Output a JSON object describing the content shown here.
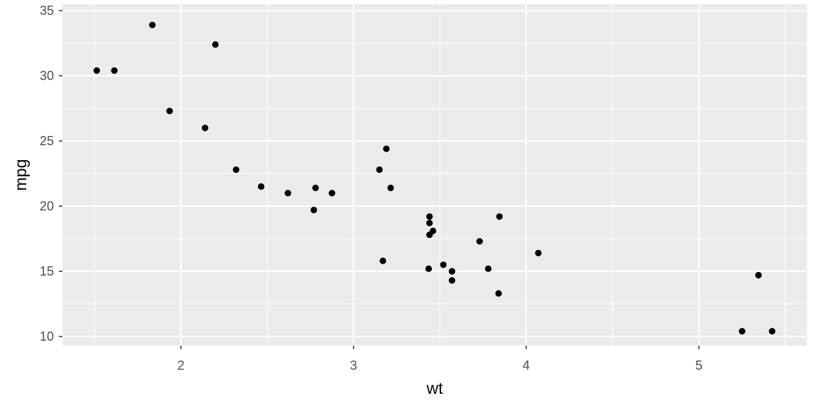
{
  "chart_data": {
    "type": "scatter",
    "xlabel": "wt",
    "ylabel": "mpg",
    "xlim": [
      1.3,
      5.6
    ],
    "ylim": [
      9.2,
      35.2
    ],
    "x_ticks": [
      2,
      3,
      4,
      5
    ],
    "x_tick_labels": [
      "2",
      "3",
      "4",
      "5"
    ],
    "y_ticks": [
      10,
      15,
      20,
      25,
      30,
      35
    ],
    "y_tick_labels": [
      "10",
      "15",
      "20",
      "25",
      "30",
      "35"
    ],
    "grid": true,
    "legend": "none",
    "colors": {
      "panel": "#ebebeb",
      "grid": "#ffffff",
      "point": "#000000"
    },
    "points": [
      {
        "x": 1.513,
        "y": 30.4
      },
      {
        "x": 1.615,
        "y": 30.4
      },
      {
        "x": 1.835,
        "y": 33.9
      },
      {
        "x": 1.935,
        "y": 27.3
      },
      {
        "x": 2.14,
        "y": 26.0
      },
      {
        "x": 2.2,
        "y": 32.4
      },
      {
        "x": 2.32,
        "y": 22.8
      },
      {
        "x": 2.465,
        "y": 21.5
      },
      {
        "x": 2.62,
        "y": 21.0
      },
      {
        "x": 2.77,
        "y": 19.7
      },
      {
        "x": 2.78,
        "y": 21.4
      },
      {
        "x": 2.875,
        "y": 21.0
      },
      {
        "x": 3.15,
        "y": 22.8
      },
      {
        "x": 3.17,
        "y": 15.8
      },
      {
        "x": 3.19,
        "y": 24.4
      },
      {
        "x": 3.215,
        "y": 21.4
      },
      {
        "x": 3.435,
        "y": 15.2
      },
      {
        "x": 3.44,
        "y": 18.7
      },
      {
        "x": 3.44,
        "y": 17.8
      },
      {
        "x": 3.44,
        "y": 19.2
      },
      {
        "x": 3.46,
        "y": 18.1
      },
      {
        "x": 3.52,
        "y": 15.5
      },
      {
        "x": 3.57,
        "y": 14.3
      },
      {
        "x": 3.57,
        "y": 15.0
      },
      {
        "x": 3.73,
        "y": 17.3
      },
      {
        "x": 3.78,
        "y": 15.2
      },
      {
        "x": 3.84,
        "y": 13.3
      },
      {
        "x": 3.845,
        "y": 19.2
      },
      {
        "x": 4.07,
        "y": 16.4
      },
      {
        "x": 5.25,
        "y": 10.4
      },
      {
        "x": 5.345,
        "y": 14.7
      },
      {
        "x": 5.424,
        "y": 10.4
      }
    ]
  }
}
